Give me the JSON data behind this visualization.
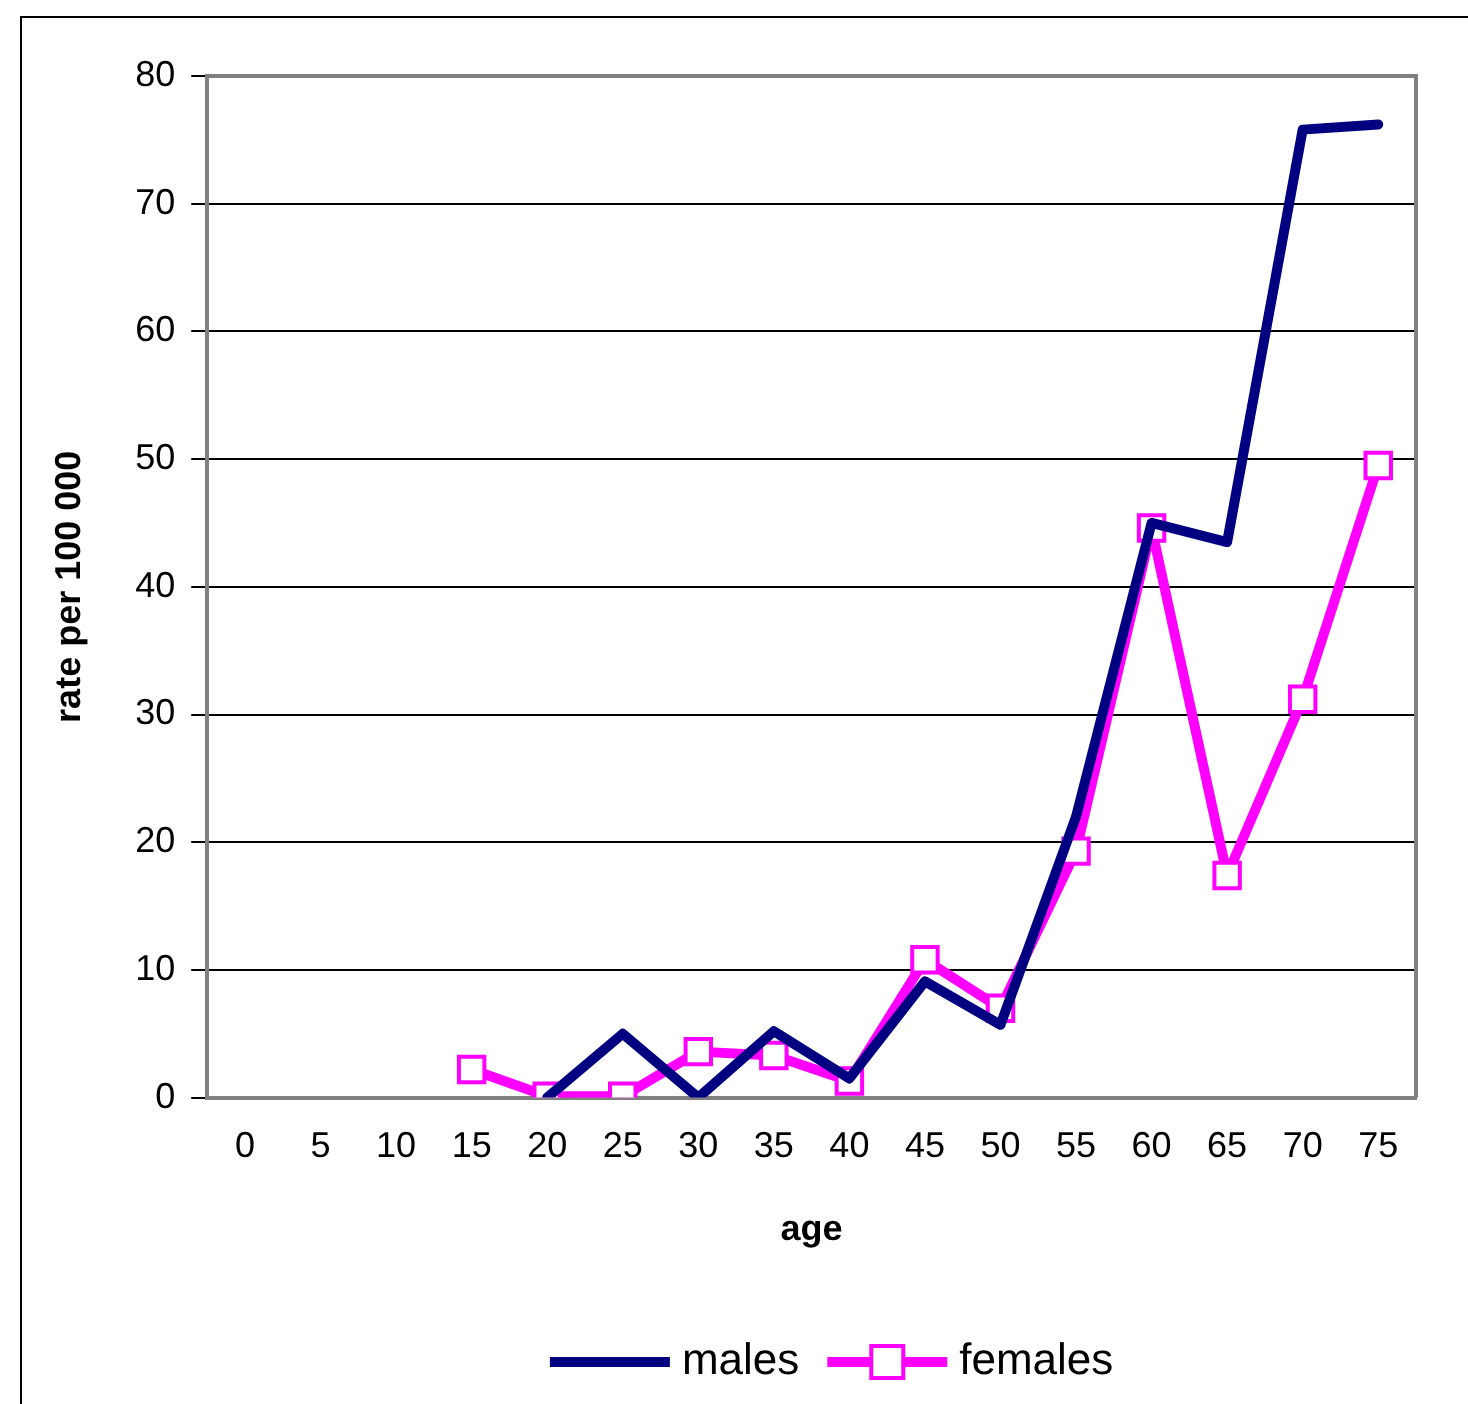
{
  "chart_data": {
    "type": "line",
    "xlabel": "age",
    "ylabel": "rate per 100 000",
    "categories": [
      "0",
      "5",
      "10",
      "15",
      "20",
      "25",
      "30",
      "35",
      "40",
      "45",
      "50",
      "55",
      "60",
      "65",
      "70",
      "75"
    ],
    "series": [
      {
        "name": "males",
        "color": "#000080",
        "marker": "none",
        "values": [
          null,
          null,
          null,
          null,
          0,
          5,
          0,
          5.2,
          1.5,
          9.1,
          5.7,
          22,
          45,
          43.5,
          75.8,
          76.2
        ]
      },
      {
        "name": "females",
        "color": "#ff00ff",
        "marker": "square",
        "values": [
          null,
          null,
          null,
          2.2,
          0.1,
          0.1,
          3.6,
          3.3,
          1.3,
          10.8,
          7,
          19.3,
          44.6,
          17.4,
          31.2,
          49.5
        ]
      }
    ],
    "ylim": [
      0,
      80
    ],
    "yticks": [
      0,
      10,
      20,
      30,
      40,
      50,
      60,
      70,
      80
    ],
    "grid": "y",
    "legend": "bottom",
    "line_style": "solid"
  }
}
